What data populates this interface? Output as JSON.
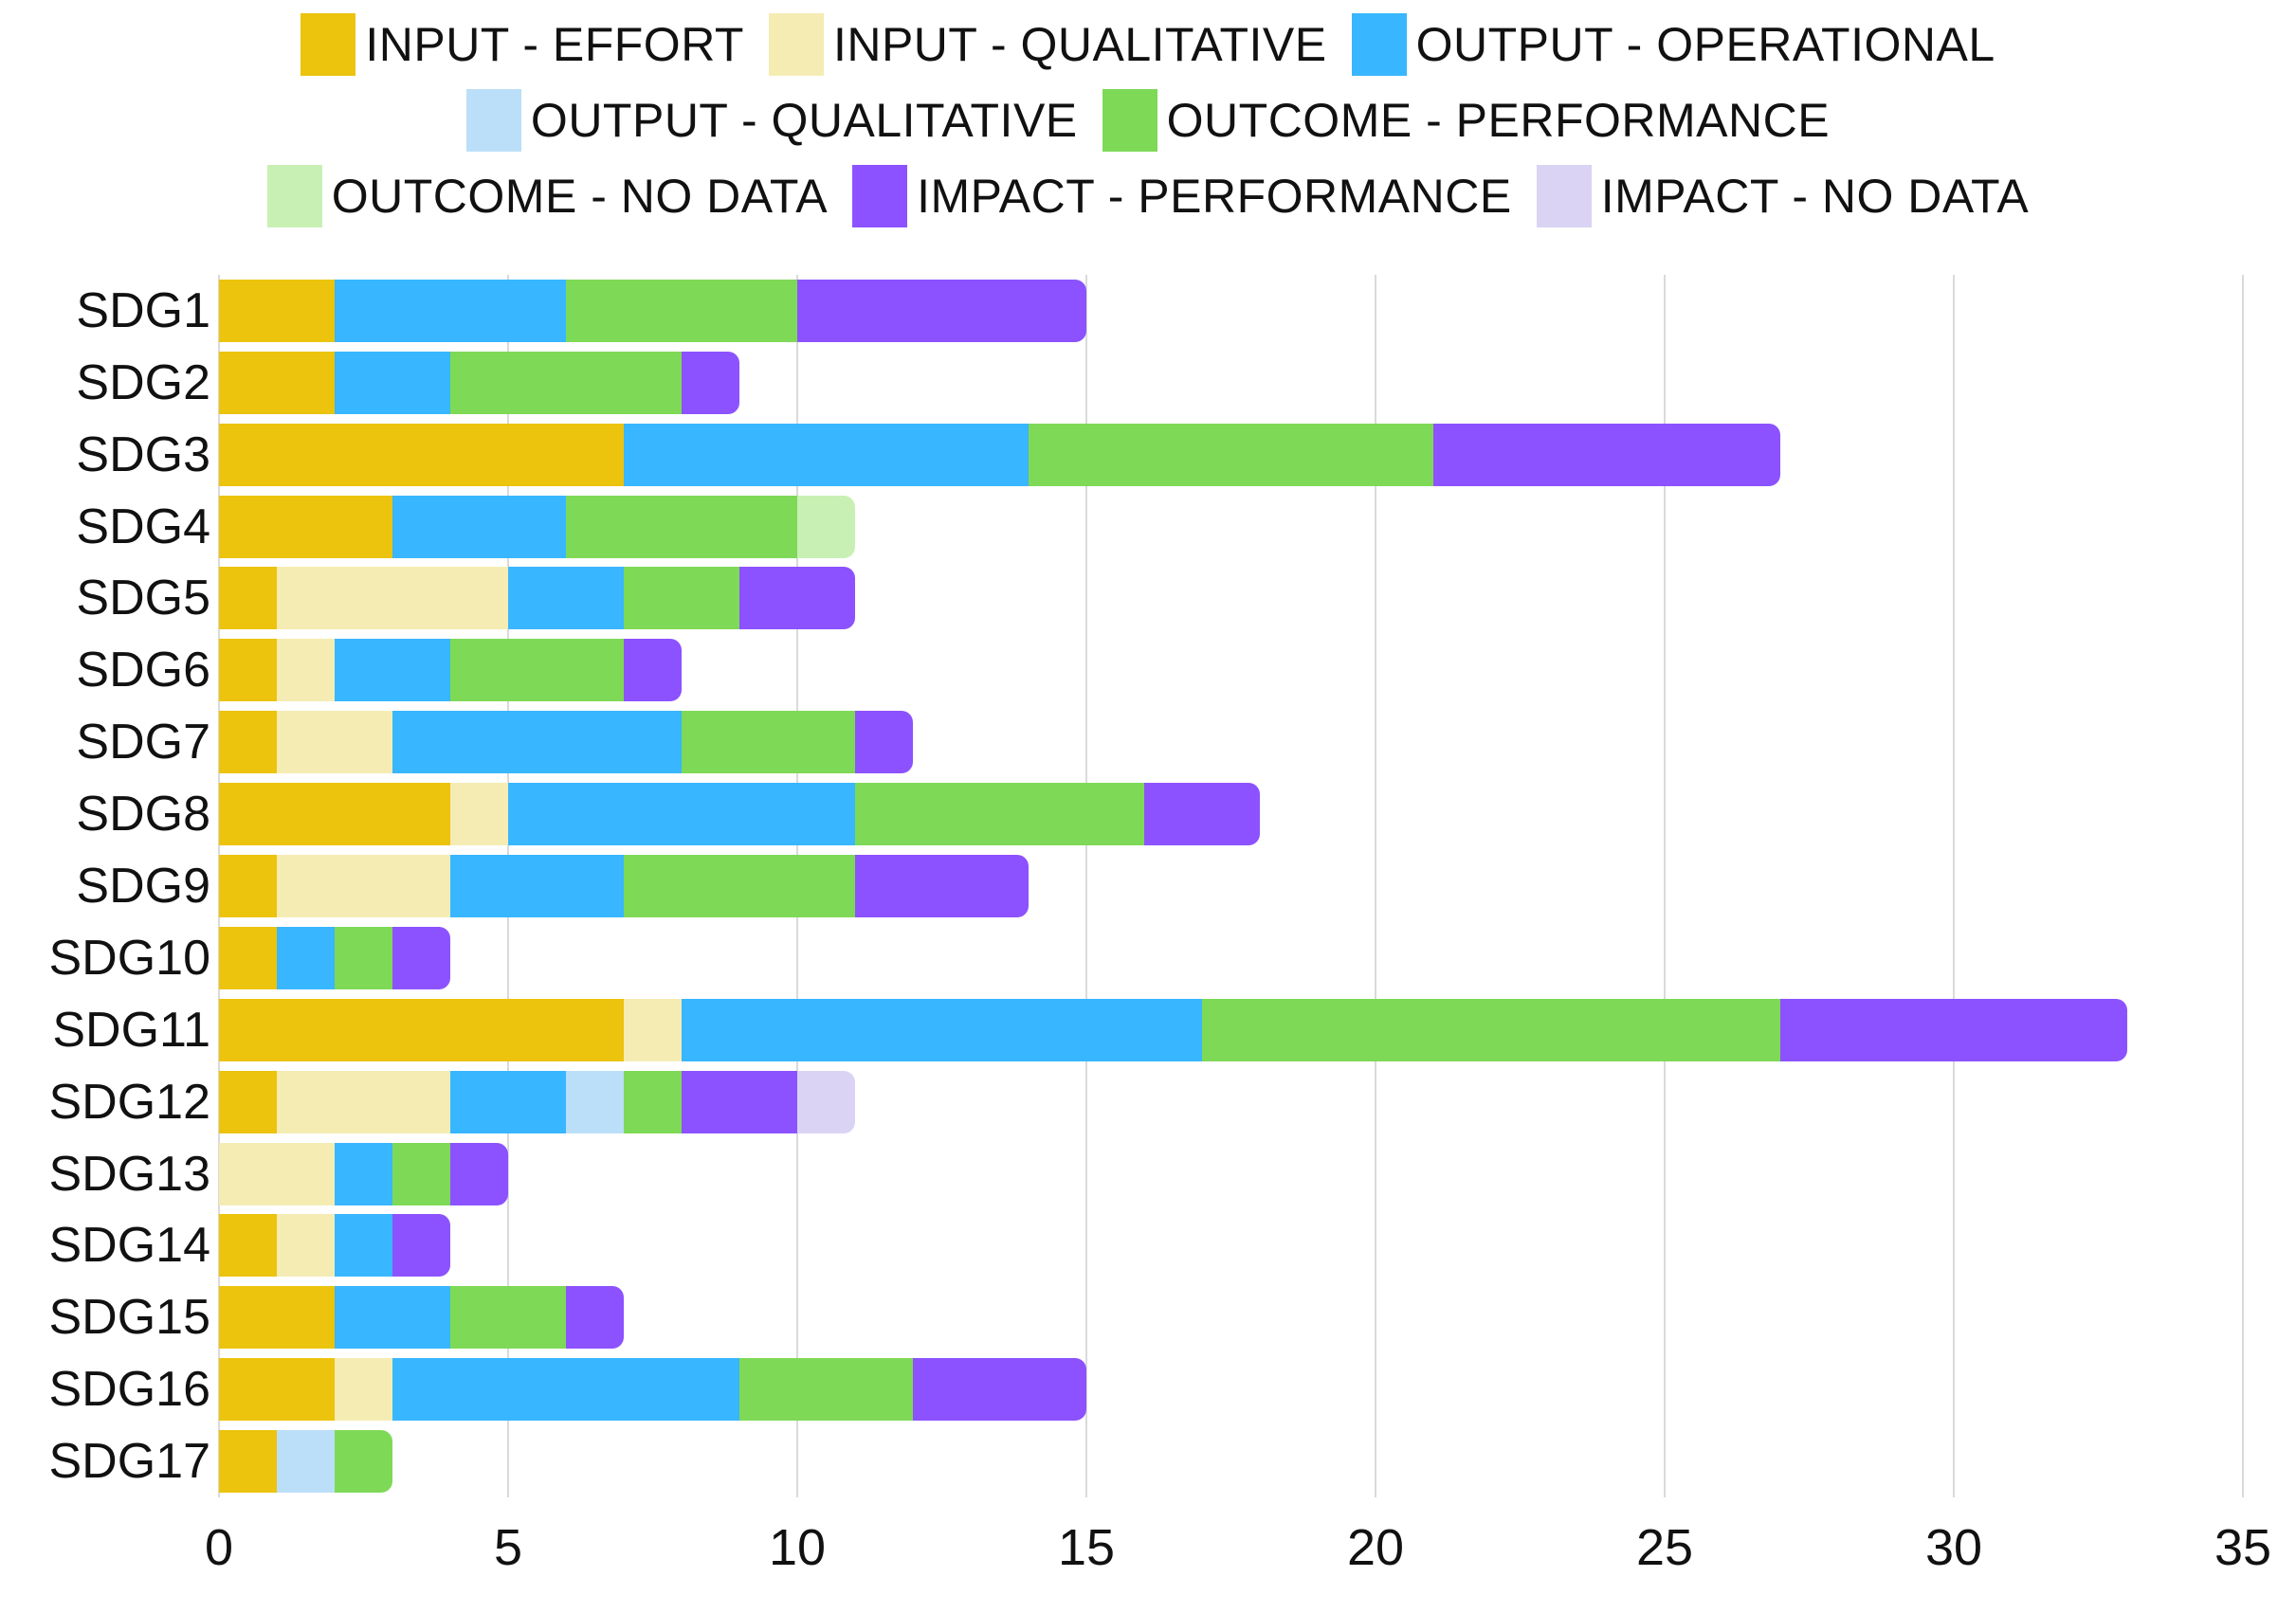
{
  "legend": {
    "rows": [
      [
        {
          "label": "INPUT - EFFORT",
          "color": "#ECC30D"
        },
        {
          "label": "INPUT - QUALITATIVE",
          "color": "#F5ECB4"
        },
        {
          "label": "OUTPUT - OPERATIONAL",
          "color": "#38B6FF"
        }
      ],
      [
        {
          "label": "OUTPUT - QUALITATIVE",
          "color": "#BBDFF8"
        },
        {
          "label": "OUTCOME - PERFORMANCE",
          "color": "#7ED957"
        }
      ],
      [
        {
          "label": "OUTCOME - NO DATA",
          "color": "#C9F0B4"
        },
        {
          "label": "IMPACT - PERFORMANCE",
          "color": "#8C52FF"
        },
        {
          "label": "IMPACT - NO DATA",
          "color": "#DAD3F4"
        }
      ]
    ]
  },
  "chart_data": {
    "type": "bar",
    "orientation": "horizontal",
    "stacked": true,
    "title": "",
    "xlabel": "",
    "ylabel": "",
    "xlim": [
      0,
      35
    ],
    "xticks": [
      0,
      5,
      10,
      15,
      20,
      25,
      30,
      35
    ],
    "grid": "vertical",
    "legend_position": "top",
    "gridline_color": "#dadada",
    "text_color": "#111111",
    "categories": [
      "SDG1",
      "SDG2",
      "SDG3",
      "SDG4",
      "SDG5",
      "SDG6",
      "SDG7",
      "SDG8",
      "SDG9",
      "SDG10",
      "SDG11",
      "SDG12",
      "SDG13",
      "SDG14",
      "SDG15",
      "SDG16",
      "SDG17"
    ],
    "series": [
      {
        "name": "INPUT - EFFORT",
        "color": "#ECC30D",
        "values": [
          2,
          2,
          7,
          3,
          1,
          1,
          1,
          4,
          1,
          1,
          7,
          1,
          0,
          1,
          2,
          2,
          1
        ]
      },
      {
        "name": "INPUT - QUALITATIVE",
        "color": "#F5ECB4",
        "values": [
          0,
          0,
          0,
          0,
          4,
          1,
          2,
          1,
          3,
          0,
          1,
          3,
          2,
          1,
          0,
          1,
          0
        ]
      },
      {
        "name": "OUTPUT - OPERATIONAL",
        "color": "#38B6FF",
        "values": [
          4,
          2,
          7,
          3,
          2,
          2,
          5,
          6,
          3,
          1,
          9,
          2,
          1,
          1,
          2,
          6,
          0
        ]
      },
      {
        "name": "OUTPUT - QUALITATIVE",
        "color": "#BBDFF8",
        "values": [
          0,
          0,
          0,
          0,
          0,
          0,
          0,
          0,
          0,
          0,
          0,
          1,
          0,
          0,
          0,
          0,
          1
        ]
      },
      {
        "name": "OUTCOME - PERFORMANCE",
        "color": "#7ED957",
        "values": [
          4,
          4,
          7,
          4,
          2,
          3,
          3,
          5,
          4,
          1,
          10,
          1,
          1,
          0,
          2,
          3,
          1
        ]
      },
      {
        "name": "OUTCOME - NO DATA",
        "color": "#C9F0B4",
        "values": [
          0,
          0,
          0,
          1,
          0,
          0,
          0,
          0,
          0,
          0,
          0,
          0,
          0,
          0,
          0,
          0,
          0
        ]
      },
      {
        "name": "IMPACT - PERFORMANCE",
        "color": "#8C52FF",
        "values": [
          5,
          1,
          6,
          0,
          2,
          1,
          1,
          2,
          3,
          1,
          6,
          2,
          1,
          1,
          1,
          3,
          0
        ]
      },
      {
        "name": "IMPACT - NO DATA",
        "color": "#DAD3F4",
        "values": [
          0,
          0,
          0,
          0,
          0,
          0,
          0,
          0,
          0,
          0,
          0,
          1,
          0,
          0,
          0,
          0,
          0
        ]
      }
    ]
  }
}
